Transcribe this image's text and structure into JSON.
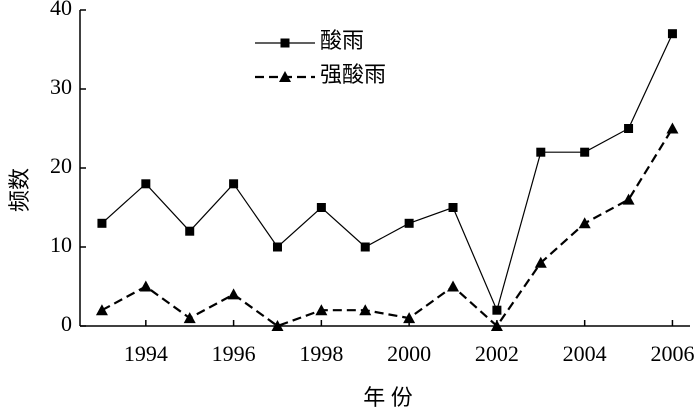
{
  "chart_data": {
    "type": "line",
    "x_label": "年 份",
    "y_label": "频数",
    "x": [
      1993,
      1994,
      1995,
      1996,
      1997,
      1998,
      1999,
      2000,
      2001,
      2002,
      2003,
      2004,
      2005,
      2006
    ],
    "series": [
      {
        "name": "酸雨",
        "color": "#000000",
        "linestyle": "solid",
        "marker": "square",
        "values": [
          13,
          18,
          12,
          18,
          10,
          15,
          10,
          13,
          15,
          2,
          22,
          22,
          25,
          37
        ]
      },
      {
        "name": "强酸雨",
        "color": "#000000",
        "linestyle": "dashed",
        "marker": "triangle",
        "values": [
          2,
          5,
          1,
          4,
          0,
          2,
          2,
          1,
          5,
          0,
          8,
          13,
          16,
          25
        ]
      }
    ],
    "xlim": [
      1992.5,
      2006.4
    ],
    "xticks": [
      1994,
      1996,
      1998,
      2000,
      2002,
      2004,
      2006
    ],
    "ylim": [
      0,
      40
    ],
    "yticks": [
      0,
      10,
      20,
      30,
      40
    ],
    "grid": false,
    "legend": "top"
  }
}
